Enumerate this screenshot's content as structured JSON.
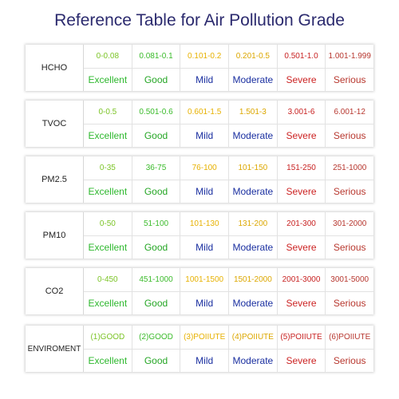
{
  "title": "Reference Table for Air Pollution Grade",
  "grades": [
    "Excellent",
    "Good",
    "Mild",
    "Moderate",
    "Severe",
    "Serious"
  ],
  "pollutants": [
    {
      "name": "HCHO",
      "ranges": [
        "0-0.08",
        "0.081-0.1",
        "0.101-0.2",
        "0.201-0.5",
        "0.501-1.0",
        "1.001-1.999"
      ]
    },
    {
      "name": "TVOC",
      "ranges": [
        "0-0.5",
        "0.501-0.6",
        "0.601-1.5",
        "1.501-3",
        "3.001-6",
        "6.001-12"
      ]
    },
    {
      "name": "PM2.5",
      "ranges": [
        "0-35",
        "36-75",
        "76-100",
        "101-150",
        "151-250",
        "251-1000"
      ]
    },
    {
      "name": "PM10",
      "ranges": [
        "0-50",
        "51-100",
        "101-130",
        "131-200",
        "201-300",
        "301-2000"
      ]
    },
    {
      "name": "CO2",
      "ranges": [
        "0-450",
        "451-1000",
        "1001-1500",
        "1501-2000",
        "2001-3000",
        "3001-5000"
      ]
    },
    {
      "name": "ENVIROMENT",
      "ranges": [
        "(1)GOOD",
        "(2)GOOD",
        "(3)POIIUTE",
        "(4)POIIUTE",
        "(5)POIIUTE",
        "(6)POIIUTE"
      ]
    }
  ]
}
